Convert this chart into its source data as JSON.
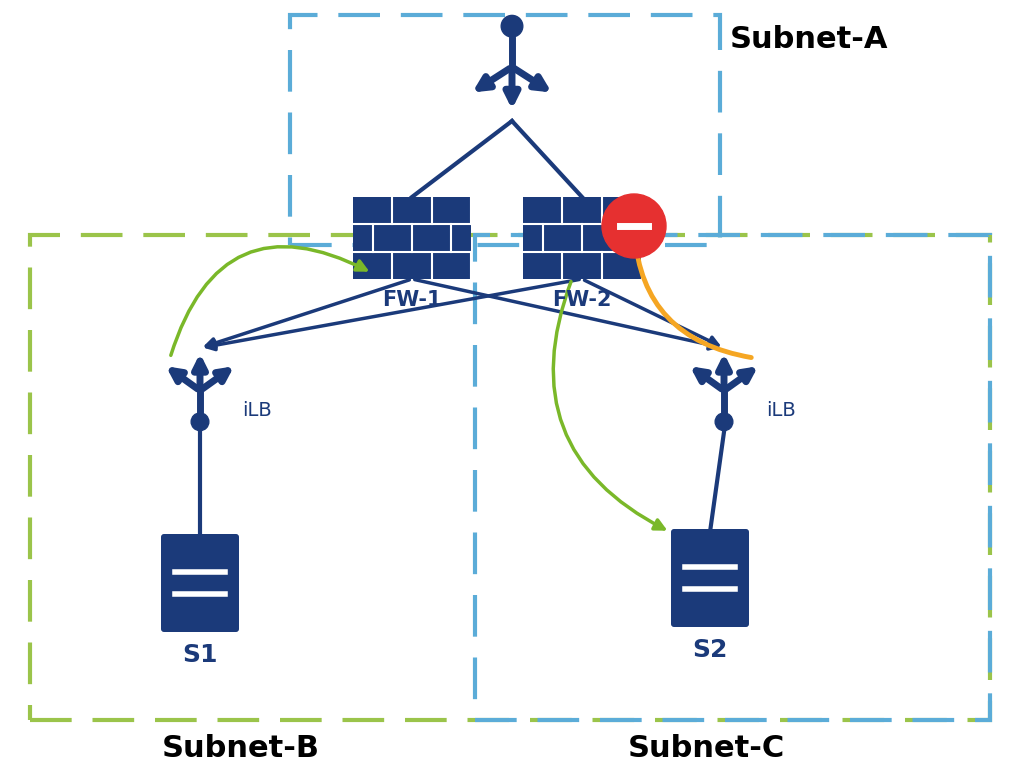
{
  "bg_color": "#ffffff",
  "dark_blue": "#1b3a7a",
  "light_blue_border": "#5bacd8",
  "green_border": "#9bc44a",
  "red_circle": "#e63030",
  "yellow_arrow": "#f5a623",
  "green_arrow": "#7ab829",
  "fw1_label": "FW-1",
  "fw2_label": "FW-2",
  "ilb_left_label": "iLB",
  "ilb_right_label": "iLB",
  "s1_label": "S1",
  "s2_label": "S2",
  "subnet_a": "Subnet-A",
  "subnet_b": "Subnet-B",
  "subnet_c": "Subnet-C",
  "title_fontsize": 22,
  "label_fontsize": 15
}
